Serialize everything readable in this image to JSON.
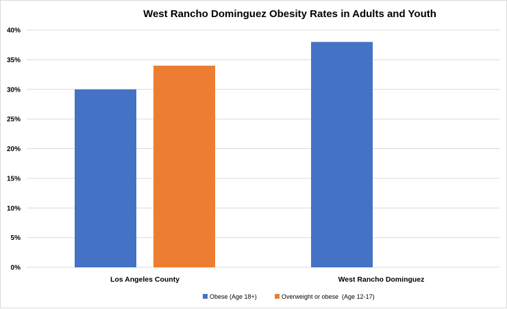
{
  "chart_data": {
    "type": "bar",
    "title": "West Rancho Dominguez Obesity Rates in Adults and Youth",
    "categories": [
      "Los Angeles County",
      "West Rancho Dominguez"
    ],
    "series": [
      {
        "name": "Obese (Age 18+)",
        "color": "#4472c4",
        "values": [
          30,
          38
        ]
      },
      {
        "name": "Overweight or obese  (Age 12-17)",
        "color": "#ed7d31",
        "values": [
          34,
          null
        ]
      }
    ],
    "ylim": [
      0,
      40
    ],
    "ytick_step": 5,
    "ytick_labels": [
      "0%",
      "5%",
      "10%",
      "15%",
      "20%",
      "25%",
      "30%",
      "35%",
      "40%"
    ],
    "xlabel": "",
    "ylabel": "",
    "grid": true,
    "legend_position": "bottom"
  }
}
